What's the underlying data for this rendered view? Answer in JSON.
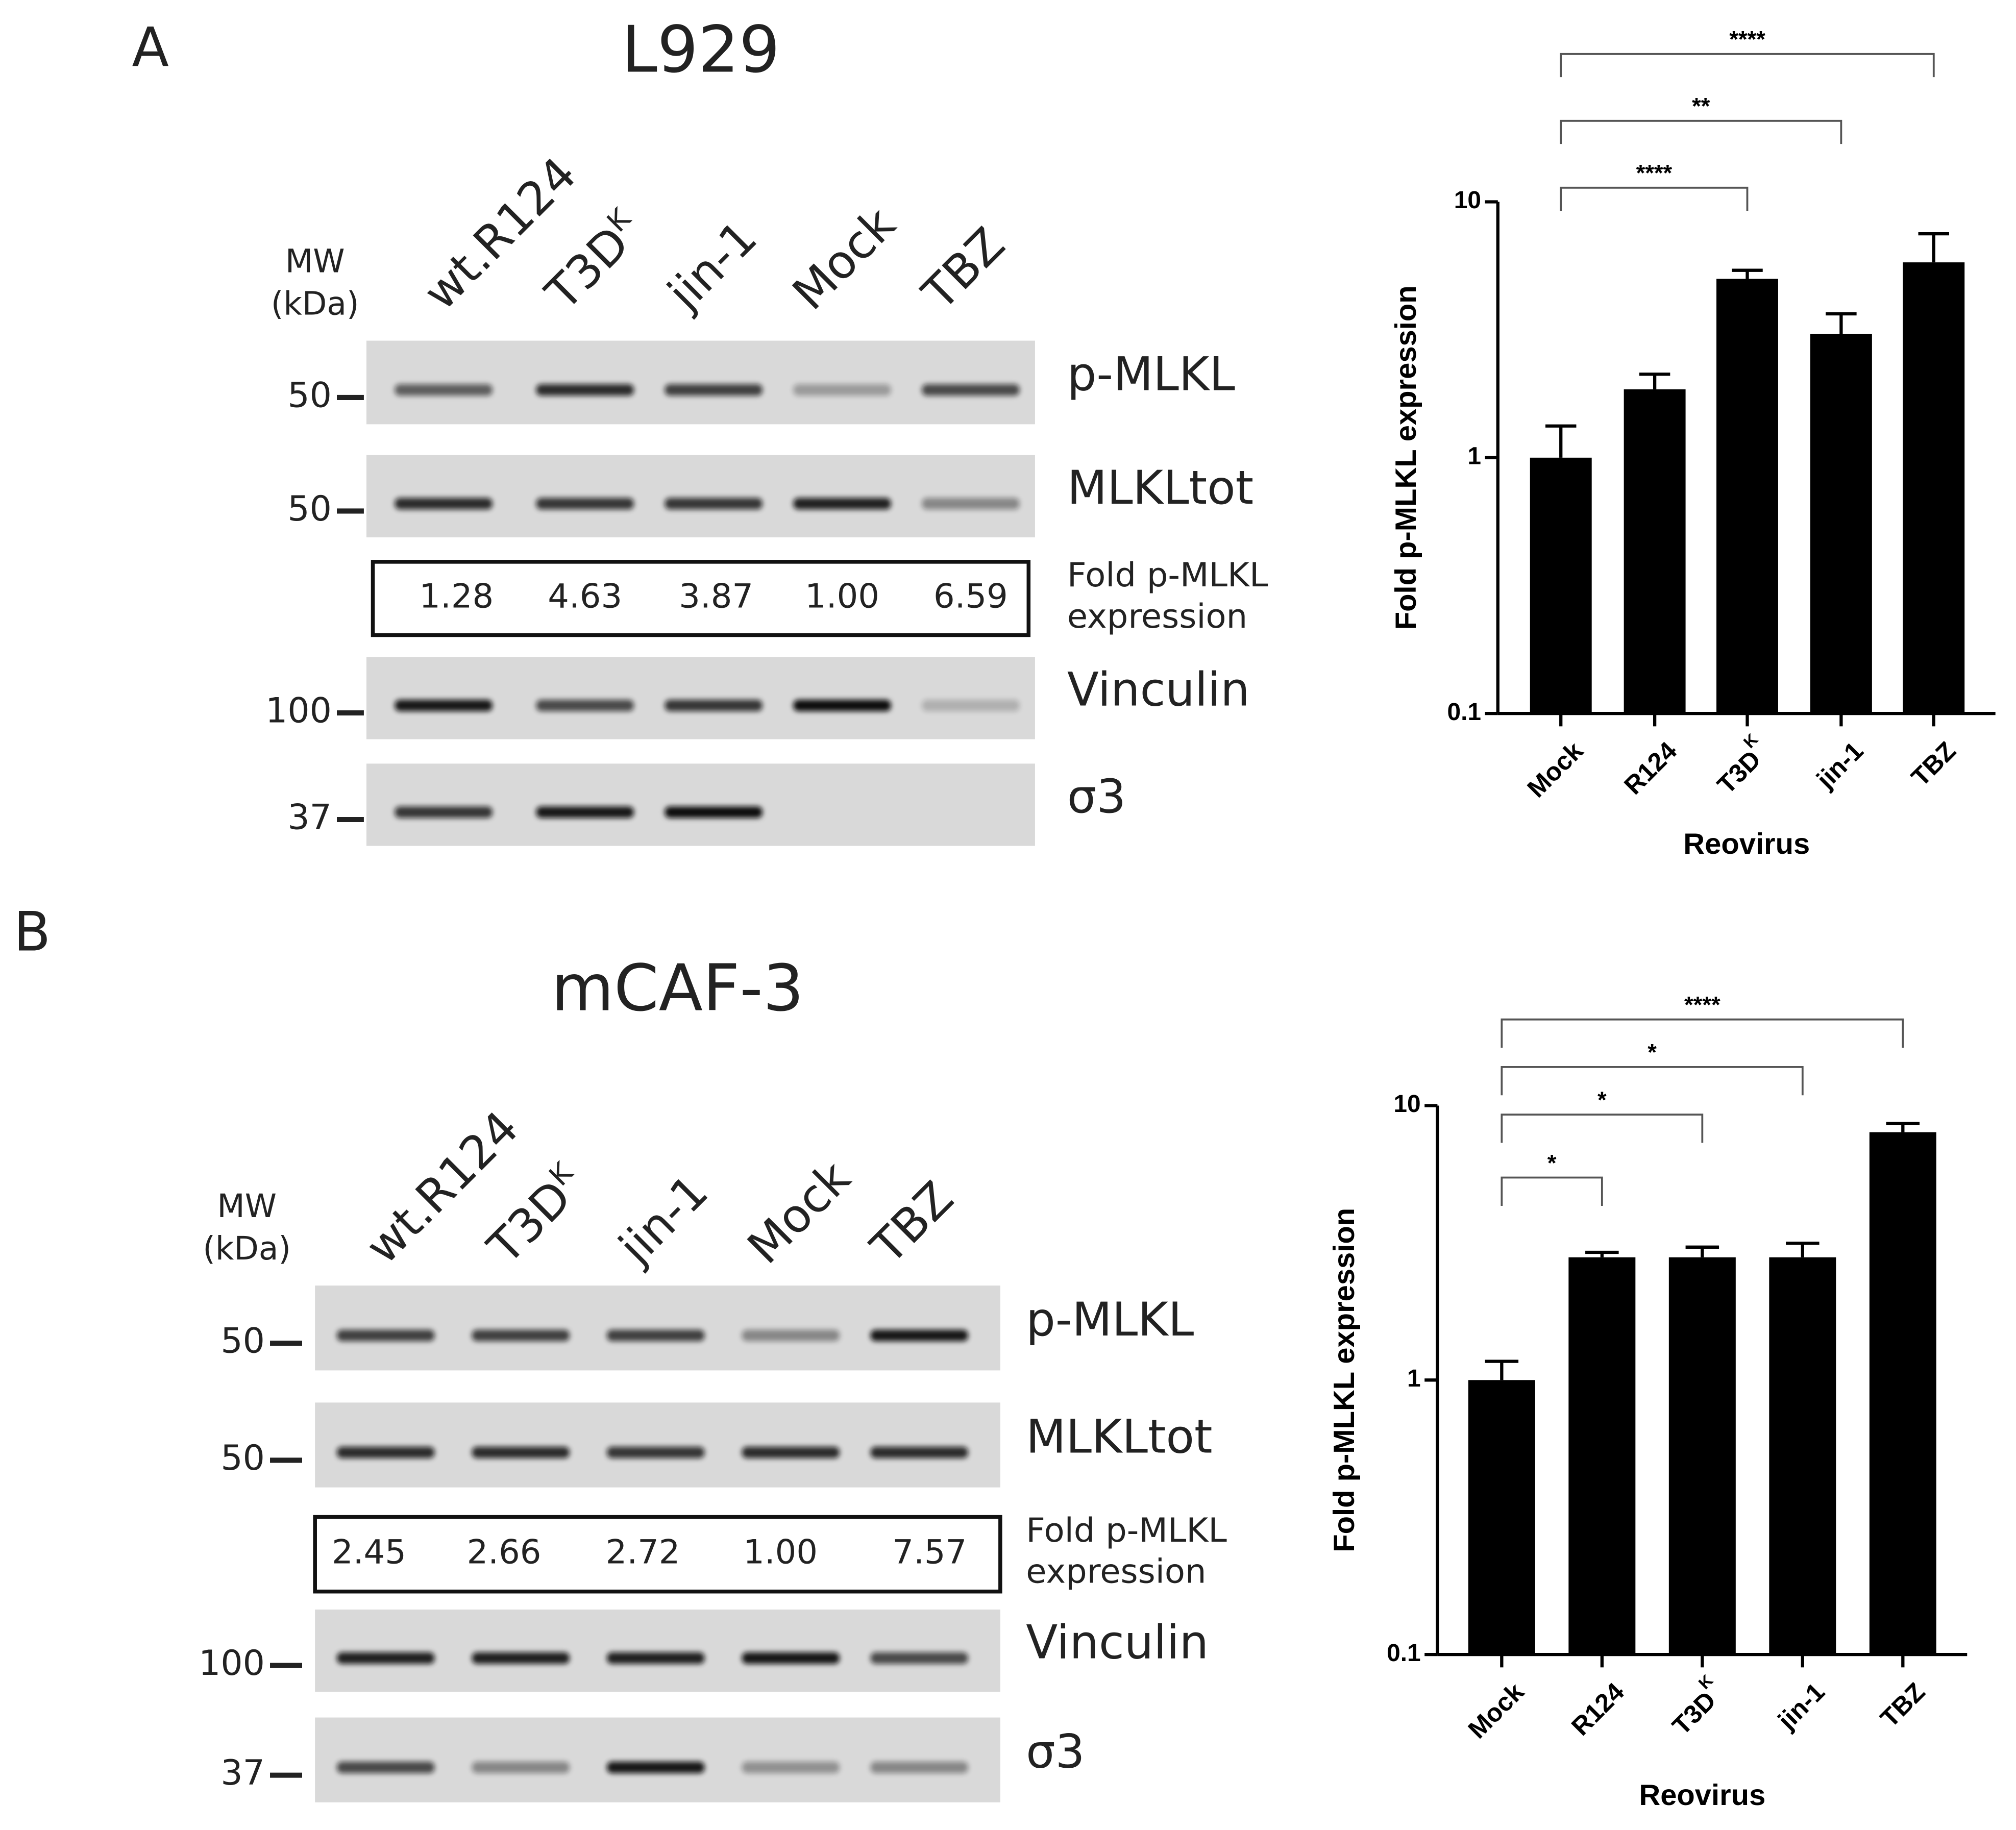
{
  "panels": [
    {
      "label": "A",
      "title": "L929",
      "mw_header": [
        "MW",
        "(kDa)"
      ],
      "lanes": [
        "wt.R124",
        "T3D",
        "jin-1",
        "Mock",
        "TBZ"
      ],
      "lane_superscripts": [
        null,
        "K",
        null,
        null,
        null
      ],
      "rows": [
        {
          "label": "p-MLKL",
          "mw": 50
        },
        {
          "label": "MLKLtot",
          "mw": 50
        },
        {
          "label": "Vinculin",
          "mw": 100
        },
        {
          "label": "σ3",
          "mw": 37
        }
      ],
      "fold": {
        "label": [
          "Fold p-MLKL",
          "expression"
        ],
        "values": [
          "1.28",
          "4.63",
          "3.87",
          "1.00",
          "6.59"
        ]
      }
    },
    {
      "label": "B",
      "title": "mCAF-3",
      "mw_header": [
        "MW",
        "(kDa)"
      ],
      "lanes": [
        "wt.R124",
        "T3D",
        "jin-1",
        "Mock",
        "TBZ"
      ],
      "lane_superscripts": [
        null,
        "K",
        null,
        null,
        null
      ],
      "rows": [
        {
          "label": "p-MLKL",
          "mw": 50
        },
        {
          "label": "MLKLtot",
          "mw": 50
        },
        {
          "label": "Vinculin",
          "mw": 100
        },
        {
          "label": "σ3",
          "mw": 37
        }
      ],
      "fold": {
        "label": [
          "Fold p-MLKL",
          "expression"
        ],
        "values": [
          "2.45",
          "2.66",
          "2.72",
          "1.00",
          "7.57"
        ]
      }
    }
  ],
  "chart_data": [
    {
      "type": "bar",
      "categories": [
        "Mock",
        "R124",
        "T3D",
        "jin-1",
        "TBZ"
      ],
      "category_superscripts": [
        null,
        null,
        "K",
        null,
        null
      ],
      "values": [
        1.0,
        1.85,
        5.0,
        3.05,
        5.8
      ],
      "errors": [
        0.33,
        0.27,
        0.4,
        0.6,
        1.7
      ],
      "color": "#000000",
      "ylim": [
        0.1,
        10
      ],
      "yticks": [
        0.1,
        1,
        10
      ],
      "log_scale": true,
      "y_label": "Fold p-MLKL expression",
      "x_label": "Reovirus",
      "comparisons": [
        {
          "groups": [
            0,
            2
          ],
          "label": "****"
        },
        {
          "groups": [
            0,
            3
          ],
          "label": "**"
        },
        {
          "groups": [
            0,
            4
          ],
          "label": "****"
        }
      ]
    },
    {
      "type": "bar",
      "categories": [
        "Mock",
        "R124",
        "T3D",
        "jin-1",
        "TBZ"
      ],
      "category_superscripts": [
        null,
        null,
        "K",
        null,
        null
      ],
      "values": [
        1.0,
        2.8,
        2.8,
        2.8,
        8.0
      ],
      "errors": [
        0.17,
        0.12,
        0.25,
        0.35,
        0.6
      ],
      "color": "#000000",
      "ylim": [
        0.1,
        10
      ],
      "yticks": [
        0.1,
        1,
        10
      ],
      "log_scale": true,
      "y_label": "Fold p-MLKL expression",
      "x_label": "Reovirus",
      "comparisons": [
        {
          "groups": [
            0,
            1
          ],
          "label": "*"
        },
        {
          "groups": [
            0,
            2
          ],
          "label": "*"
        },
        {
          "groups": [
            0,
            3
          ],
          "label": "*"
        },
        {
          "groups": [
            0,
            4
          ],
          "label": "****"
        }
      ]
    }
  ]
}
